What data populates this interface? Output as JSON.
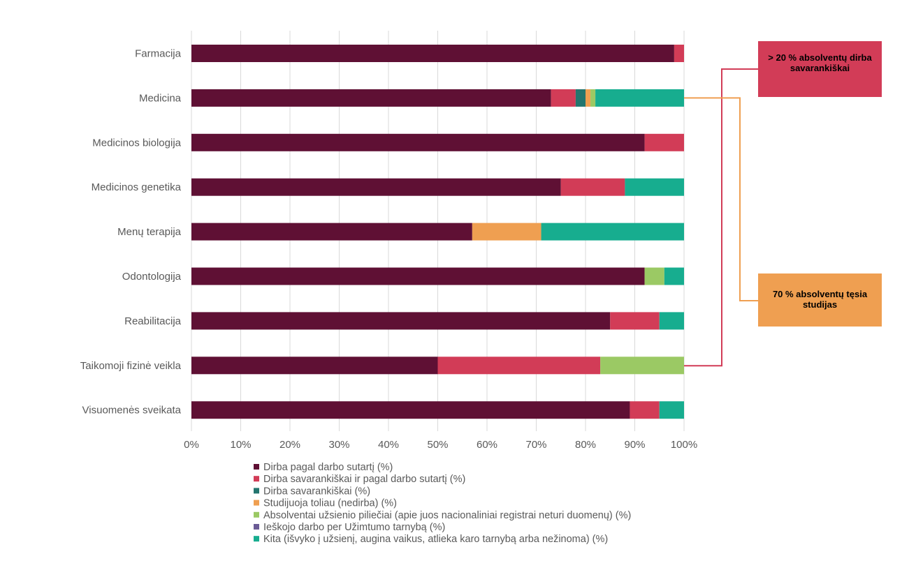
{
  "chart_data": {
    "type": "bar",
    "orientation": "horizontal",
    "stacked": true,
    "percent_stacked": true,
    "categories": [
      "Farmacija",
      "Medicina",
      "Medicinos biologija",
      "Medicinos genetika",
      "Menų terapija",
      "Odontologija",
      "Reabilitacija",
      "Taikomoji fizinė veikla",
      "Visuomenės sveikata"
    ],
    "series": [
      {
        "name": "Dirba pagal darbo sutartį (%)",
        "color": "#5f1034",
        "values": [
          98,
          73,
          92,
          75,
          57,
          92,
          85,
          50,
          89
        ]
      },
      {
        "name": "Dirba savarankiškai ir pagal darbo sutartį (%)",
        "color": "#d23c57",
        "values": [
          2,
          5,
          8,
          13,
          0,
          0,
          10,
          33,
          6
        ]
      },
      {
        "name": "Dirba savarankiškai (%)",
        "color": "#23756e",
        "values": [
          0,
          2,
          0,
          0,
          0,
          0,
          0,
          0,
          0
        ]
      },
      {
        "name": "Studijuoja toliau (nedirba) (%)",
        "color": "#ef9f51",
        "values": [
          0,
          1,
          0,
          0,
          14,
          0,
          0,
          0,
          0
        ]
      },
      {
        "name": "Absolventai užsienio piliečiai (apie juos nacionaliniai registrai neturi duomenų) (%)",
        "color": "#9bc964",
        "values": [
          0,
          1,
          0,
          0,
          0,
          4,
          0,
          17,
          0
        ]
      },
      {
        "name": "Ieškojo darbo per Užimtumo tarnybą (%)",
        "color": "#6b5b95",
        "values": [
          0,
          0,
          0,
          0,
          0,
          0,
          0,
          0,
          0
        ]
      },
      {
        "name": "Kita (išvyko į užsienį, augina vaikus, atlieka karo tarnybą arba nežinoma) (%)",
        "color": "#17ad8f",
        "values": [
          0,
          18,
          0,
          12,
          29,
          4,
          5,
          0,
          5
        ]
      }
    ],
    "xlim": [
      0,
      100
    ],
    "x_ticks": [
      "0%",
      "10%",
      "20%",
      "30%",
      "40%",
      "50%",
      "60%",
      "70%",
      "80%",
      "90%",
      "100%"
    ],
    "grid": true,
    "legend_position": "bottom",
    "annotations": [
      {
        "text": "> 20 % absolventų dirba savarankiškai",
        "color": "#d23c57",
        "points_to": "Taikomoji fizinė veikla"
      },
      {
        "text": "70 % absolventų tęsia studijas",
        "color": "#ef9f51",
        "points_to": "Medicina"
      }
    ]
  }
}
